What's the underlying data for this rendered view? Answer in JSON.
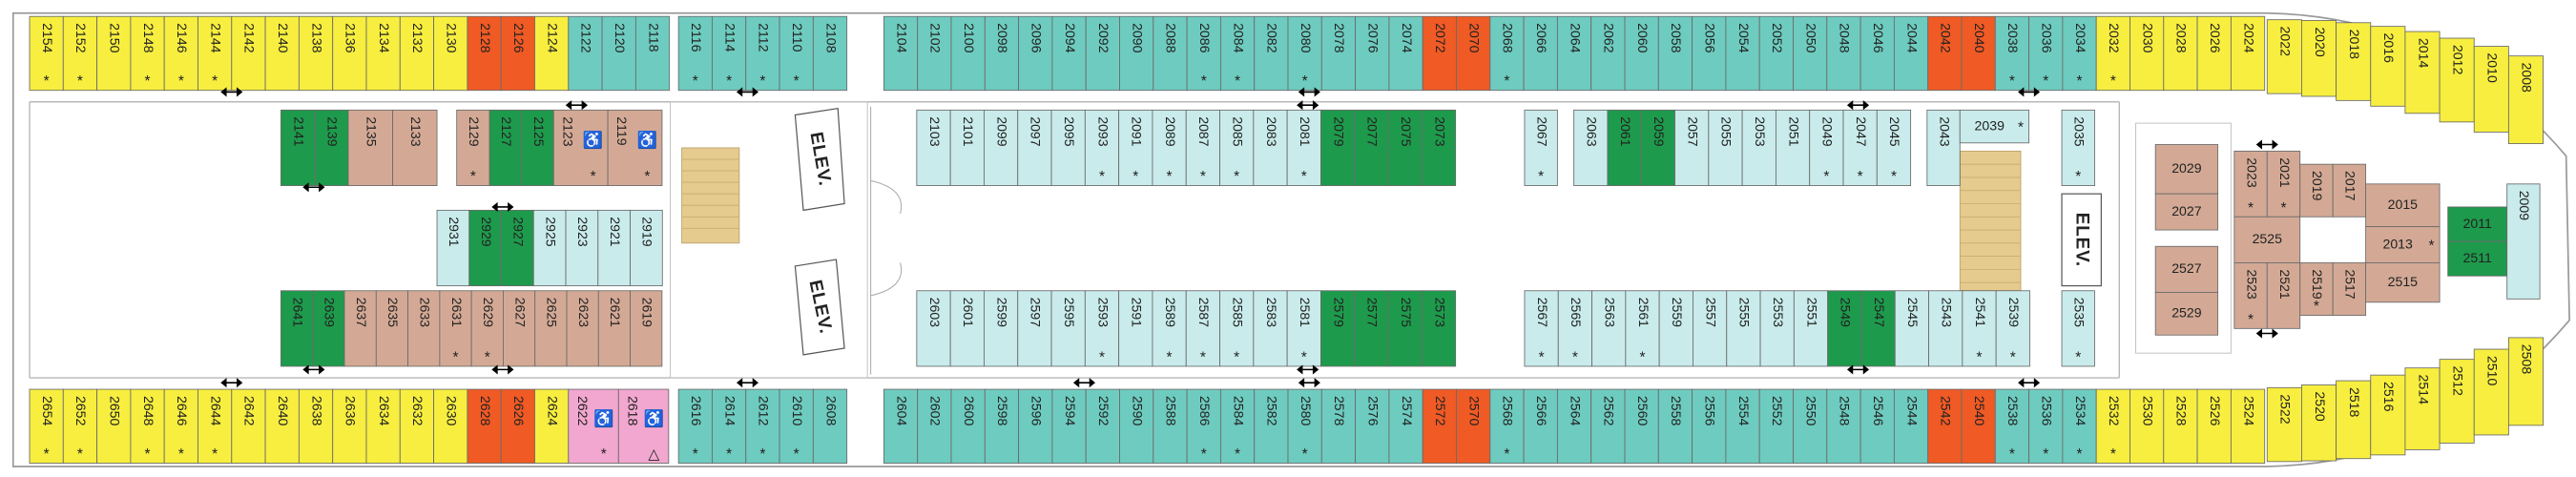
{
  "deck": {
    "elevators": [
      "ELEV.",
      "ELEV.",
      "ELEV."
    ],
    "sections": [
      {
        "groups": [
          {
            "color": "#f7ee3f",
            "cabins": [
              {
                "number": "2154",
                "note": "*"
              },
              {
                "number": "2152",
                "note": "*"
              },
              "2150",
              {
                "number": "2148",
                "note": "*"
              },
              {
                "number": "2146",
                "note": "*"
              },
              {
                "number": "2144",
                "note": "*"
              },
              "2142",
              "2140",
              "2138",
              "2136",
              "2134",
              "2132",
              "2130"
            ]
          },
          {
            "color": "#f05a24",
            "cabins": [
              "2128",
              "2126"
            ]
          },
          {
            "color": "#f7ee3f",
            "cabins": [
              "2124"
            ]
          },
          {
            "color": "#6ecbbf",
            "cabins": [
              "2122",
              "2120",
              "2118"
            ]
          }
        ]
      },
      {
        "groups": [
          {
            "color": "#6ecbbf",
            "cabins": [
              {
                "number": "2116",
                "note": "*"
              },
              {
                "number": "2114",
                "note": "*"
              },
              {
                "number": "2112",
                "note": "*"
              },
              {
                "number": "2110",
                "note": "*"
              },
              "2108"
            ]
          }
        ]
      },
      {
        "groups": [
          {
            "color": "#6ecbbf",
            "cabins": [
              "2104",
              "2102",
              "2100",
              "2098",
              "2096",
              "2094",
              "2092",
              "2090",
              "2088",
              {
                "number": "2086",
                "note": "*"
              },
              {
                "number": "2084",
                "note": "*"
              },
              "2082",
              {
                "number": "2080",
                "note": "*"
              },
              "2078",
              "2076",
              "2074"
            ]
          },
          {
            "color": "#f05a24",
            "cabins": [
              "2072",
              "2070"
            ]
          },
          {
            "color": "#6ecbbf",
            "cabins": [
              {
                "number": "2068",
                "note": "*"
              },
              "2066",
              "2064",
              "2062",
              "2060",
              "2058",
              "2056",
              "2054",
              "2052",
              "2050",
              "2048",
              "2046",
              "2044"
            ]
          },
          {
            "color": "#f05a24",
            "cabins": [
              "2042",
              "2040"
            ]
          },
          {
            "color": "#6ecbbf",
            "cabins": [
              {
                "number": "2038",
                "note": "*"
              },
              {
                "number": "2036",
                "note": "*"
              },
              {
                "number": "2034",
                "note": "*"
              }
            ]
          },
          {
            "color": "#f7ee3f",
            "cabins": [
              {
                "number": "2032",
                "note": "*"
              },
              "2030",
              "2028",
              "2026",
              "2024"
            ]
          }
        ]
      },
      {
        "groups": [
          {
            "color": "#f7ee3f",
            "cabins": [
              "2022",
              "2020",
              "2018",
              "2016",
              "2014",
              "2012",
              "2010",
              "2008"
            ]
          }
        ]
      },
      {
        "groups": [
          {
            "color": "#f7ee3f",
            "cabins": [
              {
                "number": "2654",
                "note": "*"
              },
              {
                "number": "2652",
                "note": "*"
              },
              "2650",
              {
                "number": "2648",
                "note": "*"
              },
              {
                "number": "2646",
                "note": "*"
              },
              {
                "number": "2644",
                "note": "*"
              },
              "2642",
              "2640",
              "2638",
              "2636",
              "2634",
              "2632",
              "2630"
            ]
          },
          {
            "color": "#f05a24",
            "cabins": [
              "2628",
              "2626"
            ]
          },
          {
            "color": "#f7ee3f",
            "cabins": [
              "2624"
            ]
          },
          {
            "color": "#f1a7cf",
            "cabins": [
              {
                "number": "2622",
                "icon": "♿",
                "note": "*"
              },
              {
                "number": "2618",
                "icon": "♿",
                "note": "△"
              }
            ]
          }
        ]
      },
      {
        "groups": [
          {
            "color": "#6ecbbf",
            "cabins": [
              {
                "number": "2616",
                "note": "*"
              },
              {
                "number": "2614",
                "note": "*"
              },
              {
                "number": "2612",
                "note": "*"
              },
              {
                "number": "2610",
                "note": "*"
              },
              "2608"
            ]
          }
        ]
      },
      {
        "groups": [
          {
            "color": "#6ecbbf",
            "cabins": [
              "2604",
              "2602",
              "2600",
              "2598",
              "2596",
              "2594",
              "2592",
              "2590",
              "2588",
              {
                "number": "2586",
                "note": "*"
              },
              {
                "number": "2584",
                "note": "*"
              },
              "2582",
              {
                "number": "2580",
                "note": "*"
              },
              "2578",
              "2576",
              "2574"
            ]
          },
          {
            "color": "#f05a24",
            "cabins": [
              "2572",
              "2570"
            ]
          },
          {
            "color": "#6ecbbf",
            "cabins": [
              {
                "number": "2568",
                "note": "*"
              },
              "2566",
              "2564",
              "2562",
              "2560",
              "2558",
              "2556",
              "2554",
              "2552",
              "2550",
              "2548",
              "2546",
              "2544"
            ]
          },
          {
            "color": "#f05a24",
            "cabins": [
              "2542",
              "2540"
            ]
          },
          {
            "color": "#6ecbbf",
            "cabins": [
              {
                "number": "2538",
                "note": "*"
              },
              {
                "number": "2536",
                "note": "*"
              },
              {
                "number": "2534",
                "note": "*"
              }
            ]
          },
          {
            "color": "#f7ee3f",
            "cabins": [
              {
                "number": "2532",
                "note": "*"
              },
              "2530",
              "2528",
              "2526",
              "2524"
            ]
          }
        ]
      },
      {
        "groups": [
          {
            "color": "#f7ee3f",
            "cabins": [
              "2522",
              "2520",
              "2518",
              "2516",
              "2514",
              "2512",
              "2510",
              "2508"
            ]
          }
        ]
      },
      {
        "groups": [
          {
            "color": "#1e9a4c",
            "cabins": [
              "2141",
              "2139"
            ]
          },
          {
            "color": "#d3a995",
            "cabins": [
              "2135",
              "2133"
            ]
          }
        ]
      },
      {
        "groups": [
          {
            "color": "#d3a995",
            "cabins": [
              {
                "number": "2129",
                "note": "*"
              }
            ]
          },
          {
            "color": "#1e9a4c",
            "cabins": [
              "2127",
              "2125"
            ]
          },
          {
            "color": "#d3a995",
            "cabins": [
              {
                "number": "2123",
                "icon": "♿",
                "note": "*"
              },
              {
                "number": "2119",
                "icon": "♿",
                "note": "*"
              }
            ]
          }
        ]
      },
      {
        "groups": [
          {
            "color": "#c9ebeb",
            "cabins": [
              "2931"
            ]
          },
          {
            "color": "#1e9a4c",
            "cabins": [
              "2929",
              "2927"
            ]
          },
          {
            "color": "#c9ebeb",
            "cabins": [
              "2925",
              "2923",
              "2921",
              "2919"
            ]
          }
        ]
      },
      {
        "groups": [
          {
            "color": "#1e9a4c",
            "cabins": [
              "2641",
              "2639"
            ]
          },
          {
            "color": "#d3a995",
            "cabins": [
              "2637",
              "2635",
              "2633",
              {
                "number": "2631",
                "note": "*"
              },
              {
                "number": "2629",
                "note": "*"
              },
              "2627",
              "2625",
              "2623",
              "2621",
              "2619"
            ]
          }
        ]
      },
      {
        "groups": [
          {
            "color": "#c9ebeb",
            "cabins": [
              "2103",
              "2101",
              "2099",
              "2097",
              "2095",
              {
                "number": "2093",
                "note": "*"
              },
              {
                "number": "2091",
                "note": "*"
              },
              {
                "number": "2089",
                "note": "*"
              },
              {
                "number": "2087",
                "note": "*"
              },
              {
                "number": "2085",
                "note": "*"
              },
              "2083",
              {
                "number": "2081",
                "note": "*"
              }
            ]
          },
          {
            "color": "#1e9a4c",
            "cabins": [
              "2079",
              "2077",
              "2075",
              "2073"
            ]
          }
        ]
      },
      {
        "groups": [
          {
            "color": "#c9ebeb",
            "cabins": [
              {
                "number": "2067",
                "note": "*"
              }
            ]
          }
        ]
      },
      {
        "groups": [
          {
            "color": "#c9ebeb",
            "cabins": [
              "2063"
            ]
          },
          {
            "color": "#1e9a4c",
            "cabins": [
              "2061",
              "2059"
            ]
          },
          {
            "color": "#c9ebeb",
            "cabins": [
              "2057",
              "2055",
              "2053",
              "2051",
              {
                "number": "2049",
                "note": "*"
              },
              {
                "number": "2047",
                "note": "*"
              },
              {
                "number": "2045",
                "note": "*"
              }
            ]
          }
        ]
      },
      {
        "groups": [
          {
            "color": "#c9ebeb",
            "cabins": [
              "2043"
            ]
          }
        ]
      },
      {
        "groups": [
          {
            "color": "#c9ebeb",
            "cabins": [
              {
                "number": "2039",
                "note": "*"
              }
            ]
          }
        ]
      },
      {
        "groups": [
          {
            "color": "#c9ebeb",
            "cabins": [
              {
                "number": "2035",
                "note": "*"
              }
            ]
          }
        ]
      },
      {
        "groups": [
          {
            "color": "#c9ebeb",
            "cabins": [
              "2603",
              "2601",
              "2599",
              "2597",
              "2595",
              {
                "number": "2593",
                "note": "*"
              },
              "2591",
              {
                "number": "2589",
                "note": "*"
              },
              {
                "number": "2587",
                "note": "*"
              },
              {
                "number": "2585",
                "note": "*"
              },
              "2583",
              {
                "number": "2581",
                "note": "*"
              }
            ]
          },
          {
            "color": "#1e9a4c",
            "cabins": [
              "2579",
              "2577",
              "2575",
              "2573"
            ]
          }
        ]
      },
      {
        "groups": [
          {
            "color": "#c9ebeb",
            "cabins": [
              {
                "number": "2567",
                "note": "*"
              },
              {
                "number": "2565",
                "note": "*"
              },
              "2563",
              {
                "number": "2561",
                "note": "*"
              },
              "2559",
              "2557",
              "2555",
              "2553",
              "2551"
            ]
          },
          {
            "color": "#1e9a4c",
            "cabins": [
              "2549",
              "2547"
            ]
          },
          {
            "color": "#c9ebeb",
            "cabins": [
              "2545",
              "2543",
              {
                "number": "2541",
                "note": "*"
              },
              {
                "number": "2539",
                "note": "*"
              }
            ]
          }
        ]
      },
      {
        "groups": [
          {
            "color": "#c9ebeb",
            "cabins": [
              {
                "number": "2535",
                "note": "*"
              }
            ]
          }
        ]
      },
      {
        "groups": [
          {
            "color": "#d3a995",
            "cabins": [
              "2029",
              "2027",
              "2527",
              "2529"
            ]
          }
        ]
      },
      {
        "groups": [
          {
            "color": "#d3a995",
            "cabins": [
              {
                "number": "2023",
                "note": "*"
              },
              {
                "number": "2021",
                "note": "*"
              },
              "2019",
              "2017",
              "2015",
              "2525",
              {
                "number": "2013",
                "note": "*"
              },
              {
                "number": "2523",
                "note": "*"
              },
              "2521",
              {
                "number": "2519",
                "note": "*"
              },
              "2517",
              "2515"
            ]
          }
        ]
      },
      {
        "groups": [
          {
            "color": "#1e9a4c",
            "cabins": [
              "2011",
              "2511"
            ]
          },
          {
            "color": "#c9ebeb",
            "cabins": [
              "2009"
            ]
          }
        ]
      }
    ]
  }
}
